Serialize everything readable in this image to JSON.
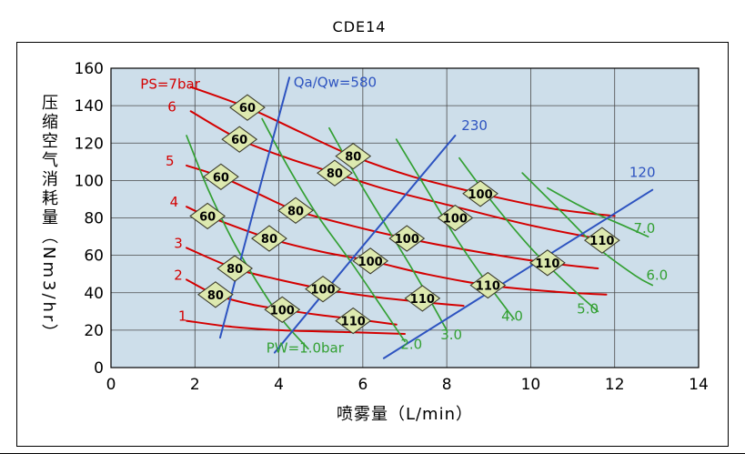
{
  "chart_data": {
    "type": "line",
    "title": "CDE14",
    "xlabel": "喷雾量（L/min）",
    "ylabel": "压缩空气消耗量（Nm3/hr）",
    "xlim": [
      0,
      14
    ],
    "ylim": [
      0,
      160
    ],
    "xticks": [
      0,
      2,
      4,
      6,
      8,
      10,
      12,
      14
    ],
    "yticks": [
      0,
      20,
      40,
      60,
      80,
      100,
      120,
      140,
      160
    ],
    "grid": true,
    "legend": "none",
    "colors": {
      "red": "#d40000",
      "green": "#33a033",
      "blue": "#2d53c0",
      "plot_bg": "#cddeea",
      "grid": "#4a4a4a",
      "marker_fill": "#dde9af",
      "marker_stroke": "#3d3d2e",
      "text": "#000000"
    },
    "series": [
      {
        "name": "PS=7bar",
        "color": "red",
        "points": [
          [
            1.9,
            150
          ],
          [
            3.25,
            139
          ],
          [
            4.5,
            126
          ],
          [
            5.77,
            113
          ],
          [
            7.2,
            102
          ],
          [
            8.8,
            93
          ],
          [
            10.5,
            85
          ],
          [
            12,
            81
          ]
        ]
      },
      {
        "name": "PS=6",
        "color": "red",
        "points": [
          [
            1.9,
            137
          ],
          [
            3.06,
            122
          ],
          [
            4.2,
            112
          ],
          [
            5.33,
            104
          ],
          [
            6.6,
            95
          ],
          [
            8.2,
            86
          ],
          [
            10,
            76
          ],
          [
            11.8,
            68
          ]
        ]
      },
      {
        "name": "PS=5",
        "color": "red",
        "points": [
          [
            1.8,
            108
          ],
          [
            2.62,
            102
          ],
          [
            3.5,
            93
          ],
          [
            4.4,
            84
          ],
          [
            5.7,
            76
          ],
          [
            7.05,
            69
          ],
          [
            8.7,
            62
          ],
          [
            10.4,
            56
          ],
          [
            11.6,
            53
          ]
        ]
      },
      {
        "name": "PS=4",
        "color": "red",
        "points": [
          [
            1.8,
            86
          ],
          [
            2.3,
            81
          ],
          [
            3.77,
            69
          ],
          [
            5.0,
            62
          ],
          [
            6.18,
            57
          ],
          [
            7.5,
            50
          ],
          [
            8.98,
            44
          ],
          [
            10.6,
            40.5
          ],
          [
            11.8,
            39
          ]
        ]
      },
      {
        "name": "PS=3",
        "color": "red",
        "points": [
          [
            1.8,
            64
          ],
          [
            2.95,
            53
          ],
          [
            4.0,
            47
          ],
          [
            5.05,
            42
          ],
          [
            6.2,
            38
          ],
          [
            7.42,
            35
          ],
          [
            8.4,
            33
          ]
        ]
      },
      {
        "name": "PS=2",
        "color": "red",
        "points": [
          [
            1.8,
            47
          ],
          [
            2.49,
            39
          ],
          [
            3.3,
            34
          ],
          [
            4.08,
            31
          ],
          [
            5.0,
            28
          ],
          [
            5.77,
            26
          ],
          [
            6.8,
            23
          ]
        ]
      },
      {
        "name": "PS=1",
        "color": "red",
        "points": [
          [
            1.8,
            25
          ],
          [
            2.8,
            22
          ],
          [
            4.0,
            20
          ],
          [
            5.5,
            19
          ],
          [
            7.0,
            18
          ]
        ]
      },
      {
        "name": "PW=1.0",
        "color": "green",
        "points": [
          [
            1.8,
            124
          ],
          [
            2.3,
            96
          ],
          [
            2.9,
            68
          ],
          [
            3.5,
            45
          ],
          [
            4.1,
            25
          ],
          [
            4.7,
            10
          ]
        ]
      },
      {
        "name": "PW=2.0",
        "color": "green",
        "points": [
          [
            3.6,
            133
          ],
          [
            4.2,
            108
          ],
          [
            4.9,
            82
          ],
          [
            5.7,
            57
          ],
          [
            6.4,
            34
          ],
          [
            7.0,
            14
          ]
        ]
      },
      {
        "name": "PW=3.0",
        "color": "green",
        "points": [
          [
            5.2,
            128
          ],
          [
            5.9,
            100
          ],
          [
            6.6,
            74
          ],
          [
            7.3,
            48
          ],
          [
            8.0,
            20
          ]
        ]
      },
      {
        "name": "PW=4.0",
        "color": "green",
        "points": [
          [
            6.8,
            122
          ],
          [
            7.5,
            96
          ],
          [
            8.2,
            70
          ],
          [
            8.9,
            47
          ],
          [
            9.6,
            26
          ]
        ]
      },
      {
        "name": "PW=5.0",
        "color": "green",
        "points": [
          [
            8.3,
            112
          ],
          [
            9.1,
            88
          ],
          [
            10.0,
            64
          ],
          [
            10.9,
            44
          ],
          [
            11.6,
            30
          ]
        ]
      },
      {
        "name": "PW=6.0",
        "color": "green",
        "points": [
          [
            9.8,
            104
          ],
          [
            10.7,
            84
          ],
          [
            11.6,
            64
          ],
          [
            12.5,
            49
          ],
          [
            12.9,
            44
          ]
        ]
      },
      {
        "name": "PW=7.0",
        "color": "green",
        "points": [
          [
            10.4,
            96
          ],
          [
            11.3,
            85
          ],
          [
            12.2,
            76
          ],
          [
            12.8,
            70
          ]
        ]
      },
      {
        "name": "Qa/Qw=580",
        "color": "blue",
        "points": [
          [
            2.6,
            16
          ],
          [
            3.4,
            84
          ],
          [
            4.25,
            155
          ]
        ]
      },
      {
        "name": "Qa/Qw=230",
        "color": "blue",
        "points": [
          [
            3.9,
            8
          ],
          [
            6.0,
            65
          ],
          [
            8.2,
            124
          ]
        ]
      },
      {
        "name": "Qa/Qw=120",
        "color": "blue",
        "points": [
          [
            6.5,
            5
          ],
          [
            9.7,
            50
          ],
          [
            12.9,
            95
          ]
        ]
      }
    ],
    "markers": [
      [
        3.25,
        139,
        "60"
      ],
      [
        3.06,
        122,
        "60"
      ],
      [
        2.62,
        102,
        "60"
      ],
      [
        2.3,
        81,
        "60"
      ],
      [
        5.77,
        113,
        "80"
      ],
      [
        5.33,
        104,
        "80"
      ],
      [
        4.4,
        84,
        "80"
      ],
      [
        3.77,
        69,
        "80"
      ],
      [
        2.95,
        53,
        "80"
      ],
      [
        2.49,
        39,
        "80"
      ],
      [
        8.8,
        93,
        "100"
      ],
      [
        8.2,
        80,
        "100"
      ],
      [
        7.05,
        69,
        "100"
      ],
      [
        6.18,
        57,
        "100"
      ],
      [
        5.05,
        42,
        "100"
      ],
      [
        4.08,
        31,
        "100"
      ],
      [
        11.7,
        68,
        "110"
      ],
      [
        10.4,
        56,
        "110"
      ],
      [
        8.98,
        44,
        "110"
      ],
      [
        7.42,
        37,
        "110"
      ],
      [
        5.77,
        25,
        "110"
      ]
    ],
    "annotations": [
      {
        "text": "PS=7bar",
        "x": 0.7,
        "y": 149,
        "color": "red",
        "anchor": "start"
      },
      {
        "text": "6",
        "x": 1.35,
        "y": 137,
        "color": "red",
        "anchor": "start"
      },
      {
        "text": "5",
        "x": 1.3,
        "y": 108,
        "color": "red",
        "anchor": "start"
      },
      {
        "text": "4",
        "x": 1.4,
        "y": 86,
        "color": "red",
        "anchor": "start"
      },
      {
        "text": "3",
        "x": 1.5,
        "y": 64,
        "color": "red",
        "anchor": "start"
      },
      {
        "text": "2",
        "x": 1.5,
        "y": 47,
        "color": "red",
        "anchor": "start"
      },
      {
        "text": "1",
        "x": 1.6,
        "y": 25,
        "color": "red",
        "anchor": "start"
      },
      {
        "text": "Qa/Qw=580",
        "x": 4.35,
        "y": 150,
        "color": "blue",
        "anchor": "start"
      },
      {
        "text": "230",
        "x": 8.35,
        "y": 127,
        "color": "blue",
        "anchor": "start"
      },
      {
        "text": "120",
        "x": 12.35,
        "y": 102,
        "color": "blue",
        "anchor": "start"
      },
      {
        "text": "PW=1.0bar",
        "x": 3.7,
        "y": 8,
        "color": "green",
        "anchor": "start"
      },
      {
        "text": "2.0",
        "x": 6.9,
        "y": 10,
        "color": "green",
        "anchor": "start"
      },
      {
        "text": "3.0",
        "x": 7.85,
        "y": 15,
        "color": "green",
        "anchor": "start"
      },
      {
        "text": "4.0",
        "x": 9.3,
        "y": 25,
        "color": "green",
        "anchor": "start"
      },
      {
        "text": "5.0",
        "x": 11.1,
        "y": 29,
        "color": "green",
        "anchor": "start"
      },
      {
        "text": "6.0",
        "x": 12.75,
        "y": 47,
        "color": "green",
        "anchor": "start"
      },
      {
        "text": "7.0",
        "x": 12.45,
        "y": 72,
        "color": "green",
        "anchor": "start"
      }
    ]
  }
}
